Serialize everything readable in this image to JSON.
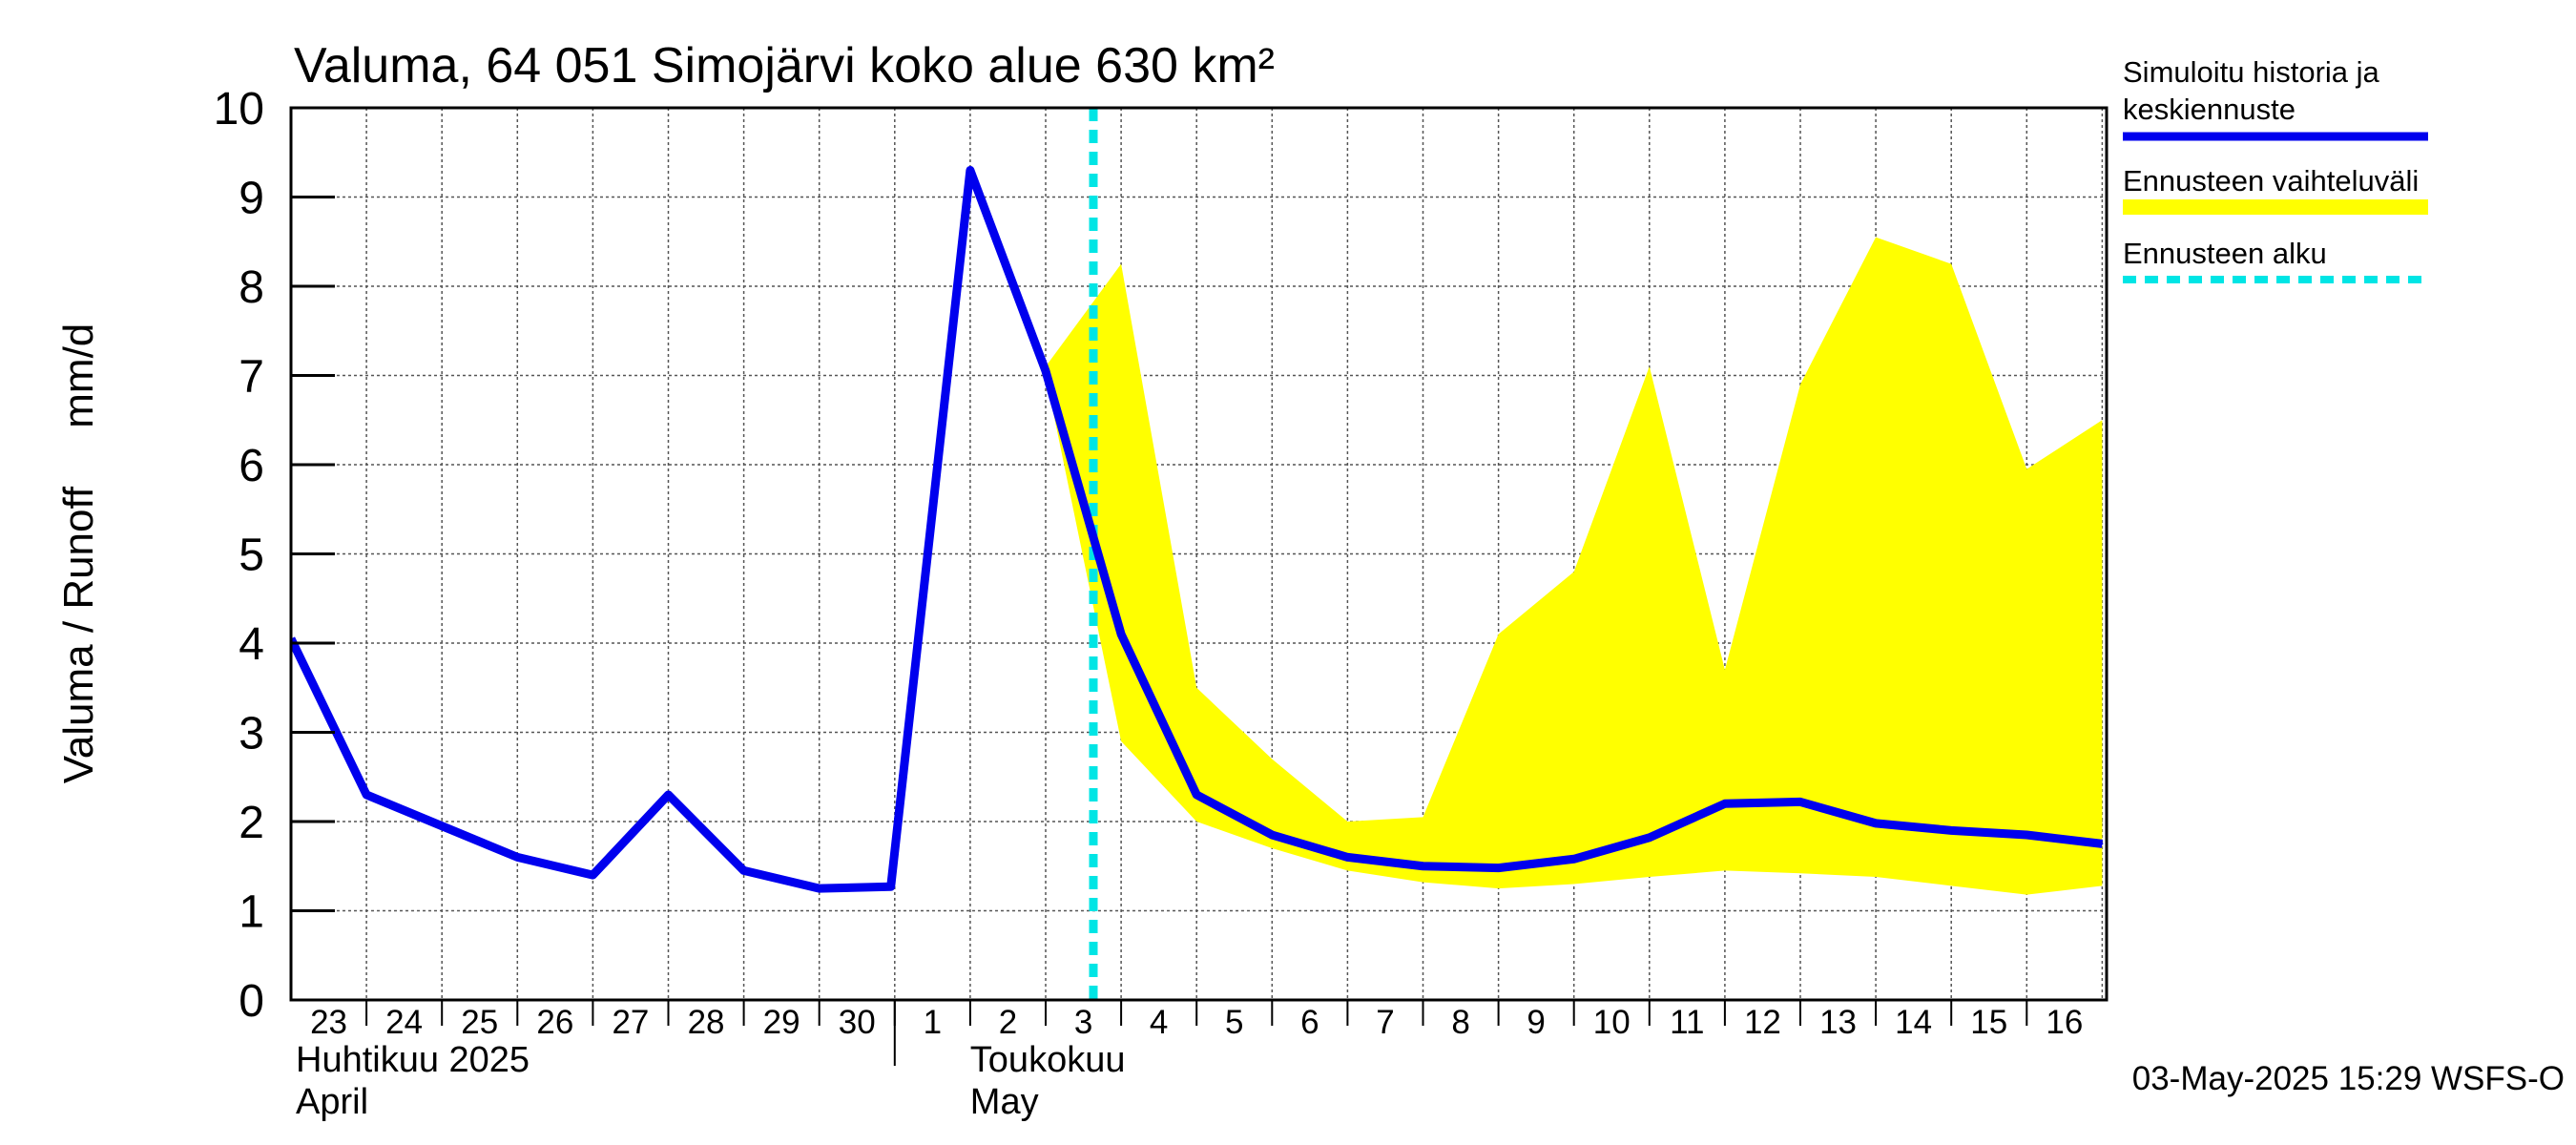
{
  "chart_data": {
    "type": "line",
    "title": "Valuma, 64 051 Simojärvi koko alue 630 km²",
    "ylabel": "Valuma / Runoff     mm/d",
    "ylim": [
      0,
      10
    ],
    "yticks": [
      "0",
      "1",
      "2",
      "3",
      "4",
      "5",
      "6",
      "7",
      "8",
      "9",
      "10"
    ],
    "grid": true,
    "xlim": [
      "2025-04-23",
      "2025-05-16"
    ],
    "x_day_labels": [
      "23",
      "24",
      "25",
      "26",
      "27",
      "28",
      "29",
      "30",
      "1",
      "2",
      "3",
      "4",
      "5",
      "6",
      "7",
      "8",
      "9",
      "10",
      "11",
      "12",
      "13",
      "14",
      "15",
      "16"
    ],
    "month_labels": [
      {
        "fi": "Huhtikuu  2025",
        "en": "April"
      },
      {
        "fi": "Toukokuu",
        "en": "May"
      }
    ],
    "forecast_start": "2025-05-02",
    "series": [
      {
        "name": "Simuloitu historia ja keskiennuste",
        "color": "#0000ee",
        "points": [
          [
            "2025-04-22",
            4.05
          ],
          [
            "2025-04-23",
            2.3
          ],
          [
            "2025-04-24",
            1.95
          ],
          [
            "2025-04-25",
            1.6
          ],
          [
            "2025-04-26",
            1.4
          ],
          [
            "2025-04-27",
            2.3
          ],
          [
            "2025-04-28",
            1.45
          ],
          [
            "2025-04-29",
            1.25
          ],
          [
            "2025-04-29",
            1.27
          ],
          [
            "2025-05-01",
            9.3
          ],
          [
            "2025-05-02",
            7.05
          ],
          [
            "2025-05-03",
            4.1
          ],
          [
            "2025-05-04",
            2.3
          ],
          [
            "2025-05-05",
            1.85
          ],
          [
            "2025-05-06",
            1.6
          ],
          [
            "2025-05-07",
            1.5
          ],
          [
            "2025-05-08",
            1.48
          ],
          [
            "2025-05-09",
            1.58
          ],
          [
            "2025-05-10",
            1.82
          ],
          [
            "2025-05-11",
            2.2
          ],
          [
            "2025-05-12",
            2.22
          ],
          [
            "2025-05-13",
            1.98
          ],
          [
            "2025-05-14",
            1.9
          ],
          [
            "2025-05-15",
            1.85
          ],
          [
            "2025-05-16",
            1.75
          ]
        ]
      }
    ],
    "band": {
      "name": "Ennusteen vaihteluväli",
      "color": "#ffff00",
      "upper": [
        [
          "2025-05-02",
          7.1
        ],
        [
          "2025-05-03",
          8.25
        ],
        [
          "2025-05-04",
          3.5
        ],
        [
          "2025-05-05",
          2.7
        ],
        [
          "2025-05-06",
          2.0
        ],
        [
          "2025-05-07",
          2.05
        ],
        [
          "2025-05-08",
          4.1
        ],
        [
          "2025-05-09",
          4.8
        ],
        [
          "2025-05-10",
          7.1
        ],
        [
          "2025-05-11",
          3.7
        ],
        [
          "2025-05-12",
          6.9
        ],
        [
          "2025-05-13",
          8.55
        ],
        [
          "2025-05-14",
          8.25
        ],
        [
          "2025-05-15",
          5.95
        ],
        [
          "2025-05-16",
          6.5
        ]
      ],
      "lower": [
        [
          "2025-05-02",
          7.0
        ],
        [
          "2025-05-03",
          2.9
        ],
        [
          "2025-05-04",
          2.0
        ],
        [
          "2025-05-05",
          1.7
        ],
        [
          "2025-05-06",
          1.45
        ],
        [
          "2025-05-07",
          1.32
        ],
        [
          "2025-05-08",
          1.25
        ],
        [
          "2025-05-09",
          1.3
        ],
        [
          "2025-05-10",
          1.38
        ],
        [
          "2025-05-11",
          1.45
        ],
        [
          "2025-05-12",
          1.42
        ],
        [
          "2025-05-13",
          1.38
        ],
        [
          "2025-05-14",
          1.28
        ],
        [
          "2025-05-15",
          1.18
        ],
        [
          "2025-05-16",
          1.28
        ]
      ]
    },
    "legend": {
      "placement": "right",
      "items": [
        {
          "label_lines": [
            "Simuloitu historia ja",
            "keskiennuste"
          ],
          "style": "line",
          "color": "#0000ee"
        },
        {
          "label_lines": [
            "Ennusteen vaihteluväli"
          ],
          "style": "band",
          "color": "#ffff00"
        },
        {
          "label_lines": [
            "Ennusteen alku"
          ],
          "style": "dashed",
          "color": "#00e5e5"
        }
      ]
    },
    "footer": "03-May-2025 15:29 WSFS-O"
  }
}
